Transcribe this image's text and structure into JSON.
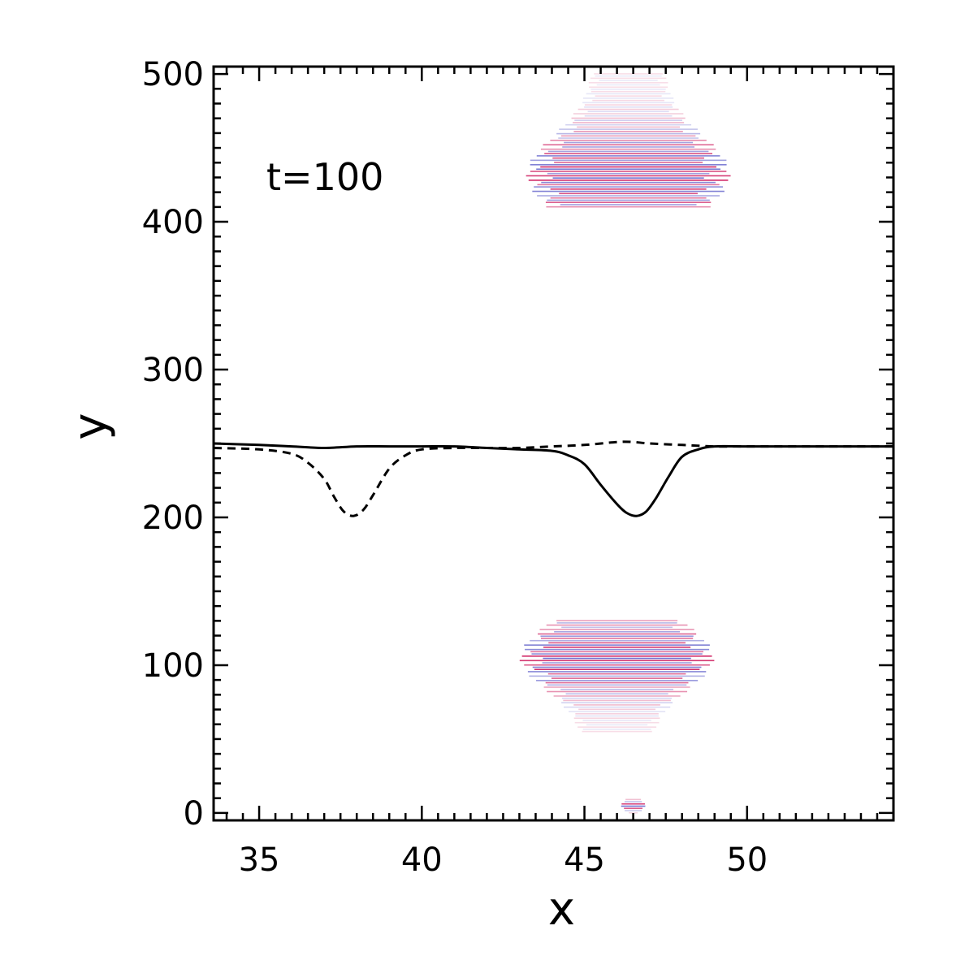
{
  "chart_data": {
    "type": "line",
    "title": "",
    "xlabel": "x",
    "ylabel": "y",
    "xlim": [
      33.6,
      54.5
    ],
    "ylim": [
      -5,
      505
    ],
    "x_ticks": [
      35,
      40,
      45,
      50
    ],
    "y_ticks": [
      0,
      100,
      200,
      300,
      400,
      500
    ],
    "annotation": "t=100",
    "grid": false,
    "legend": "none",
    "series": [
      {
        "style": "solid",
        "color": "#000000",
        "x": [
          33.6,
          35.0,
          36.0,
          37.0,
          38.0,
          39.0,
          40.0,
          41.0,
          42.0,
          43.0,
          44.0,
          44.5,
          45.0,
          45.5,
          46.0,
          46.3,
          46.6,
          46.9,
          47.2,
          47.6,
          48.0,
          48.5,
          49.0,
          50.0,
          51.0,
          52.0,
          54.5
        ],
        "y": [
          250,
          249,
          248,
          247,
          248,
          248,
          248,
          248,
          247,
          246,
          245,
          242,
          236,
          222,
          209,
          203,
          201,
          204,
          213,
          228,
          241,
          246,
          248,
          248,
          248,
          248,
          248
        ]
      },
      {
        "style": "dashed",
        "color": "#000000",
        "x": [
          33.6,
          35.0,
          36.0,
          36.5,
          37.0,
          37.3,
          37.6,
          37.9,
          38.2,
          38.5,
          39.0,
          39.5,
          40.0,
          41.0,
          42.0,
          43.0,
          44.0,
          45.0,
          46.0,
          46.5,
          47.0,
          48.0,
          49.0,
          50.0,
          52.0,
          54.5
        ],
        "y": [
          247,
          246,
          243,
          237,
          226,
          214,
          204,
          201,
          205,
          215,
          233,
          242,
          246,
          247,
          247,
          247,
          248,
          249,
          251,
          251,
          250,
          249,
          248,
          248,
          248,
          248
        ]
      }
    ],
    "heatmap_blobs": [
      {
        "x_range": [
          43.2,
          49.5
        ],
        "y_range": [
          410,
          500
        ],
        "peak_y": 432
      },
      {
        "x_range": [
          43.0,
          49.0
        ],
        "y_range": [
          55,
          130
        ],
        "peak_y": 105
      },
      {
        "x_range": [
          46.1,
          46.9
        ],
        "y_range": [
          0,
          10
        ],
        "peak_y": 5
      }
    ],
    "colors": {
      "axis": "#000000",
      "heat_warm": "#c8004a",
      "heat_cool": "#5a5ac8"
    }
  }
}
